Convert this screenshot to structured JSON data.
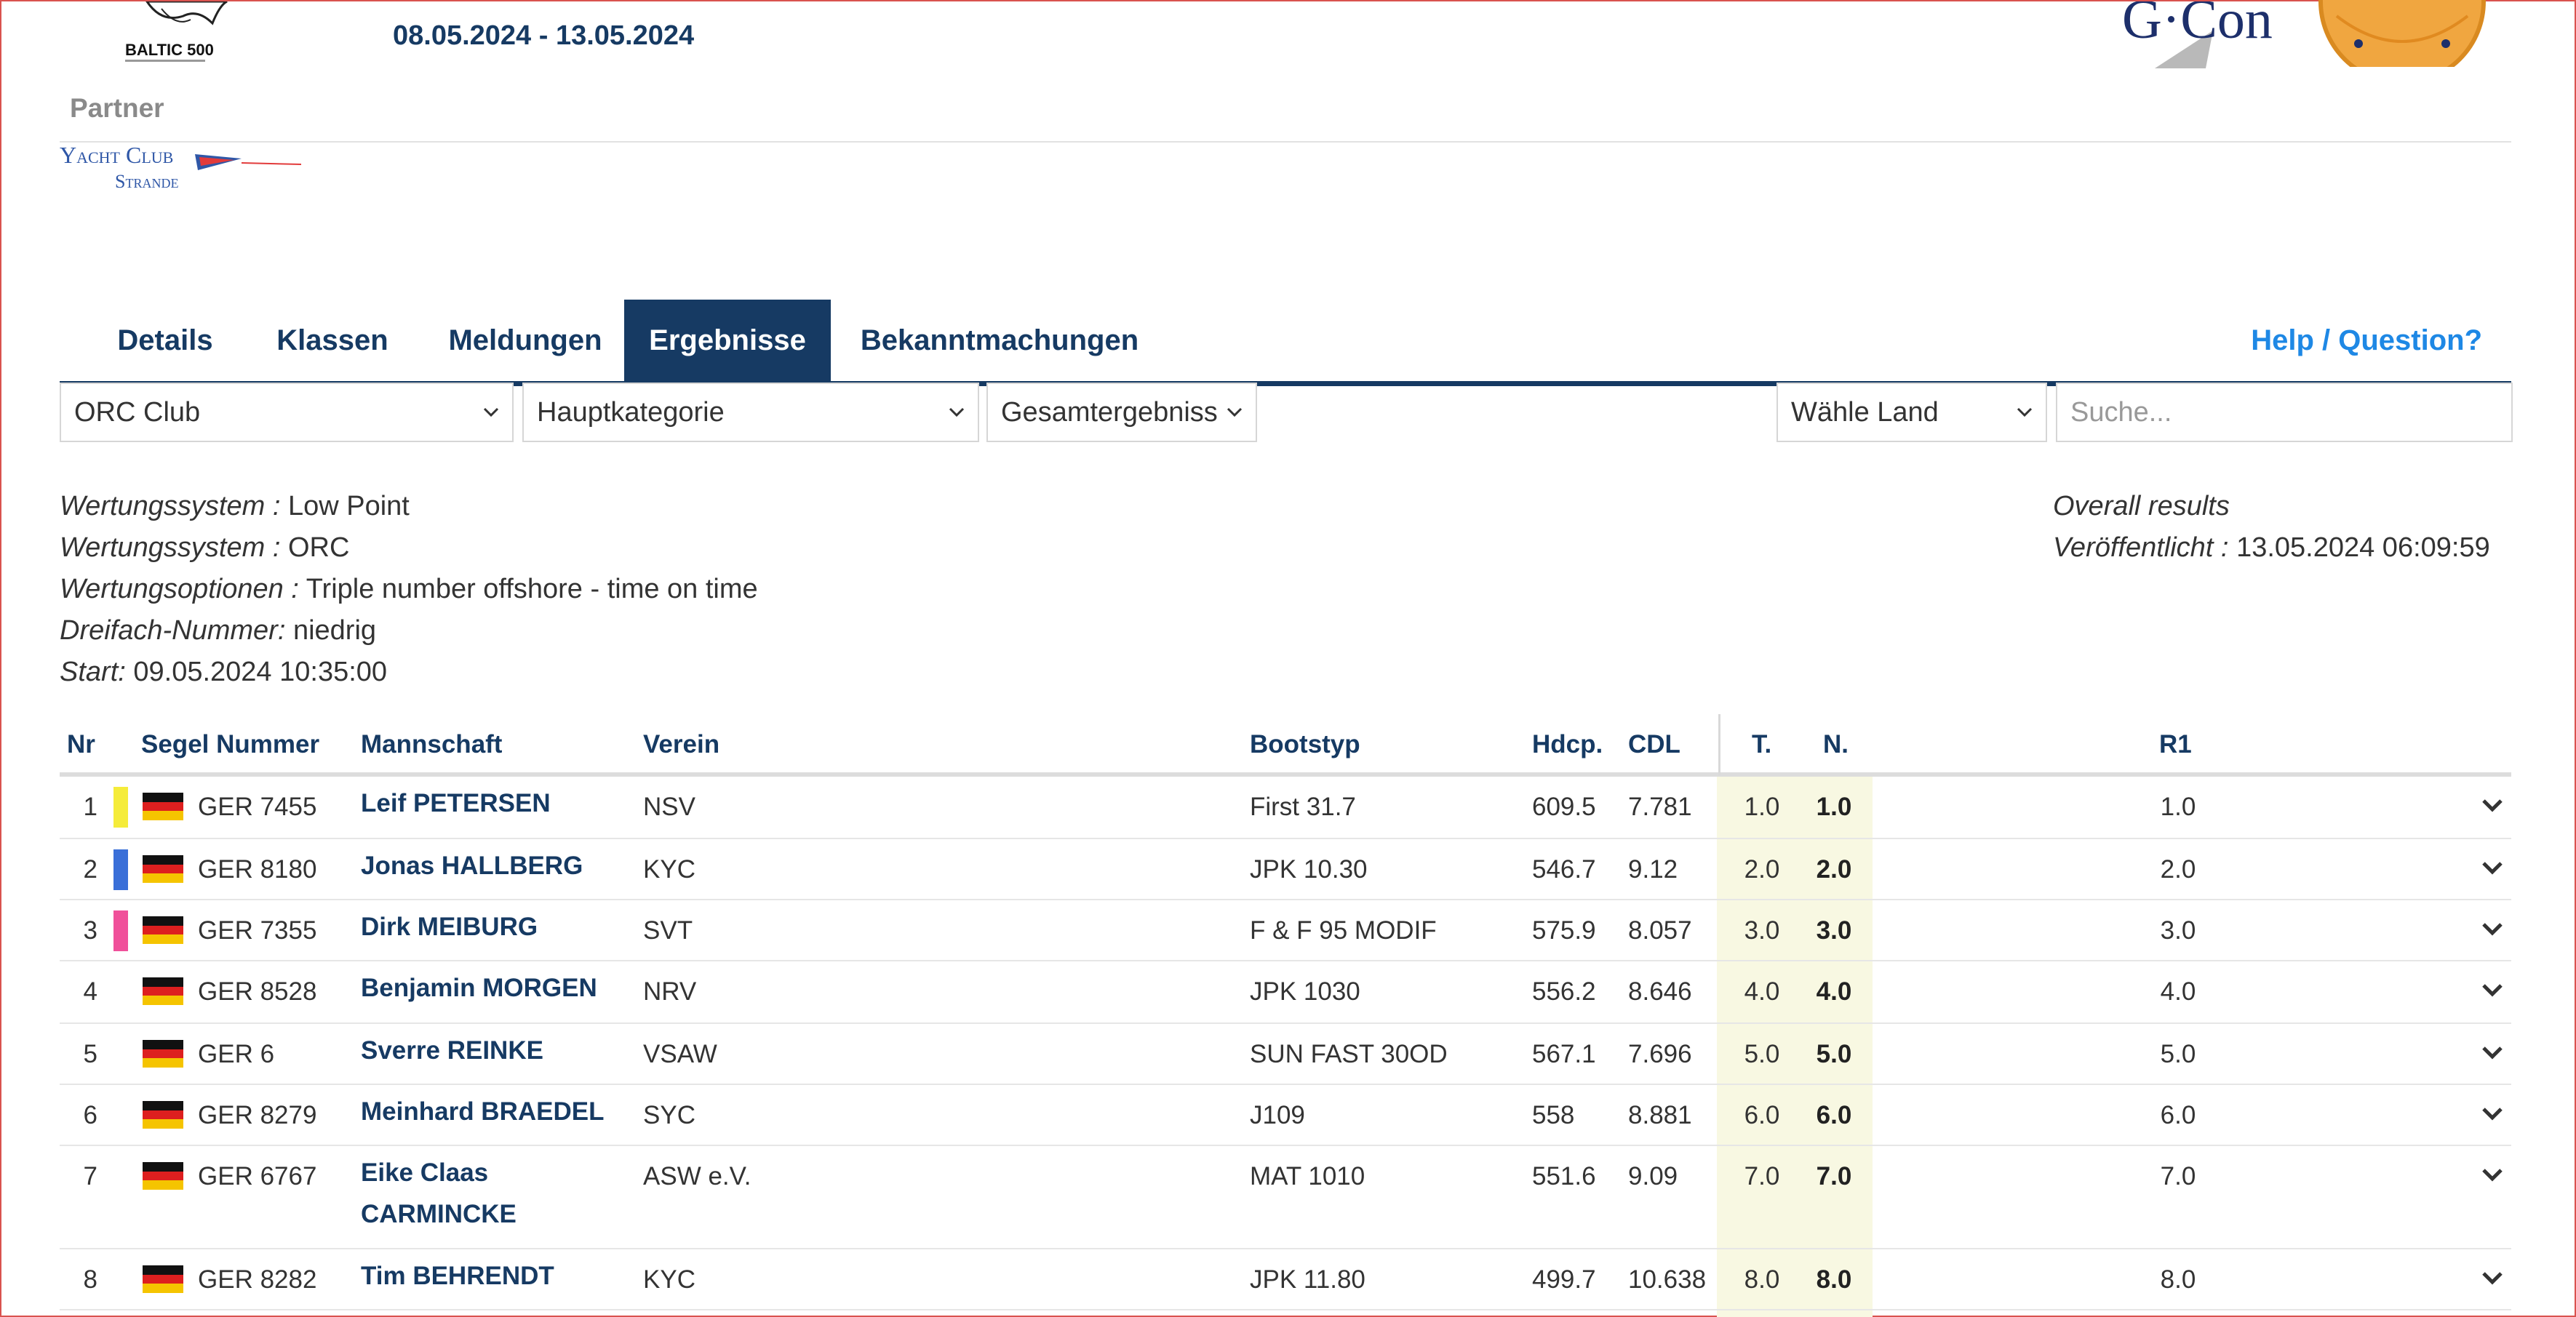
{
  "header": {
    "event_logo_text": "BALTIC 500",
    "date_range": "08.05.2024 - 13.05.2024",
    "sponsor_logo_text": "G·Con",
    "partner_label": "Partner",
    "partner_logo_line1": "Yacht Club",
    "partner_logo_line2": "Strande"
  },
  "tabs": [
    {
      "label": "Details",
      "active": false
    },
    {
      "label": "Klassen",
      "active": false
    },
    {
      "label": "Meldungen",
      "active": false
    },
    {
      "label": "Ergebnisse",
      "active": true
    },
    {
      "label": "Bekanntmachungen",
      "active": false
    }
  ],
  "help_link": "Help / Question?",
  "filters": {
    "class_select": "ORC Club",
    "category_select": "Hauptkategorie",
    "result_select": "Gesamtergebniss",
    "country_select": "Wähle Land",
    "search_placeholder": "Suche..."
  },
  "info": {
    "scoring_label": "Wertungssystem :",
    "scoring_value": "Low Point",
    "scoring2_label": "Wertungssystem :",
    "scoring2_value": "ORC",
    "options_label": "Wertungsoptionen :",
    "options_value": "Triple number offshore - time on time",
    "triple_label": "Dreifach-Nummer:",
    "triple_value": "niedrig",
    "start_label": "Start:",
    "start_value": "09.05.2024 10:35:00",
    "overall": "Overall results",
    "published_label": "Veröffentlicht :",
    "published_value": "13.05.2024 06:09:59"
  },
  "table": {
    "headers": {
      "nr": "Nr",
      "sail": "Segel Nummer",
      "crew": "Mannschaft",
      "club": "Verein",
      "boat": "Bootstyp",
      "hdcp": "Hdcp.",
      "cdl": "CDL",
      "t": "T.",
      "n": "N.",
      "r1": "R1"
    },
    "rows": [
      {
        "nr": "1",
        "swatch": "#f5ec3a",
        "sail": "GER 7455",
        "crew": "Leif PETERSEN",
        "club": "NSV",
        "boat": "First 31.7",
        "hdcp": "609.5",
        "cdl": "7.781",
        "t": "1.0",
        "n": "1.0",
        "r1": "1.0"
      },
      {
        "nr": "2",
        "swatch": "#3a6fd8",
        "sail": "GER 8180",
        "crew": "Jonas HALLBERG",
        "club": "KYC",
        "boat": "JPK 10.30",
        "hdcp": "546.7",
        "cdl": "9.12",
        "t": "2.0",
        "n": "2.0",
        "r1": "2.0"
      },
      {
        "nr": "3",
        "swatch": "#f0509a",
        "sail": "GER 7355",
        "crew": "Dirk MEIBURG",
        "club": "SVT",
        "boat": "F & F 95 MODIF",
        "hdcp": "575.9",
        "cdl": "8.057",
        "t": "3.0",
        "n": "3.0",
        "r1": "3.0"
      },
      {
        "nr": "4",
        "swatch": "",
        "sail": "GER 8528",
        "crew": "Benjamin MORGEN",
        "club": "NRV",
        "boat": "JPK 1030",
        "hdcp": "556.2",
        "cdl": "8.646",
        "t": "4.0",
        "n": "4.0",
        "r1": "4.0"
      },
      {
        "nr": "5",
        "swatch": "",
        "sail": "GER 6",
        "crew": "Sverre REINKE",
        "club": "VSAW",
        "boat": "SUN FAST 30OD",
        "hdcp": "567.1",
        "cdl": "7.696",
        "t": "5.0",
        "n": "5.0",
        "r1": "5.0"
      },
      {
        "nr": "6",
        "swatch": "",
        "sail": "GER 8279",
        "crew": "Meinhard BRAEDEL",
        "club": "SYC",
        "boat": "J109",
        "hdcp": "558",
        "cdl": "8.881",
        "t": "6.0",
        "n": "6.0",
        "r1": "6.0"
      },
      {
        "nr": "7",
        "swatch": "",
        "sail": "GER 6767",
        "crew": "Eike Claas CARMINCKE",
        "club": "ASW e.V.",
        "boat": "MAT 1010",
        "hdcp": "551.6",
        "cdl": "9.09",
        "t": "7.0",
        "n": "7.0",
        "r1": "7.0"
      },
      {
        "nr": "8",
        "swatch": "",
        "sail": "GER 8282",
        "crew": "Tim BEHRENDT",
        "club": "KYC",
        "boat": "JPK 11.80",
        "hdcp": "499.7",
        "cdl": "10.638",
        "t": "8.0",
        "n": "8.0",
        "r1": "8.0"
      }
    ]
  },
  "colors": {
    "navy": "#163a63",
    "link_blue": "#1e88e5",
    "highlight": "#f8f8e2"
  },
  "icons": {
    "row_expand": "chevron-down-icon",
    "select_arrow": "chevron-down-icon",
    "flag": "germany-flag-icon"
  }
}
